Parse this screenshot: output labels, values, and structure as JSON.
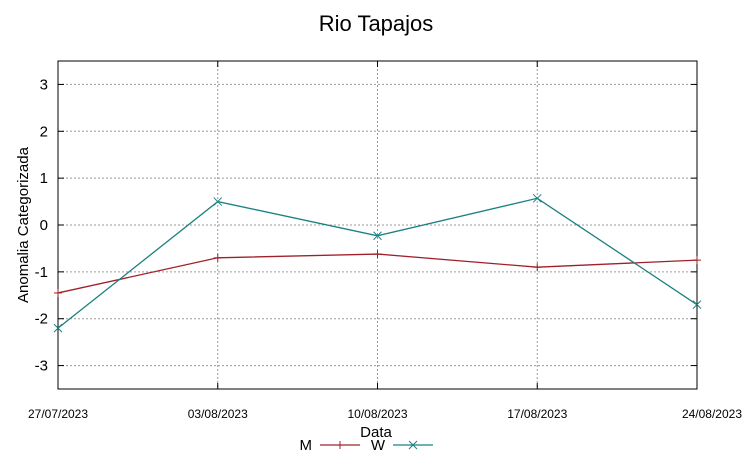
{
  "chart_data": {
    "type": "line",
    "title": "Rio Tapajos",
    "xlabel": "Data",
    "ylabel": "Anomalia Categorizada",
    "categories": [
      "27/07/2023",
      "03/08/2023",
      "10/08/2023",
      "17/08/2023",
      "24/08/2023"
    ],
    "ylim": [
      -3.5,
      3.5
    ],
    "yticks": [
      3,
      2,
      1,
      0,
      -1,
      -2,
      -3
    ],
    "grid": true,
    "legend_position": "bottom-center",
    "series": [
      {
        "name": "M",
        "color": "#a0202a",
        "marker": "plus",
        "values": [
          -1.45,
          -0.7,
          -0.62,
          -0.9,
          -0.75
        ]
      },
      {
        "name": "W",
        "color": "#1a8080",
        "marker": "x",
        "values": [
          -2.2,
          0.5,
          -0.23,
          0.57,
          -1.7
        ]
      }
    ]
  }
}
